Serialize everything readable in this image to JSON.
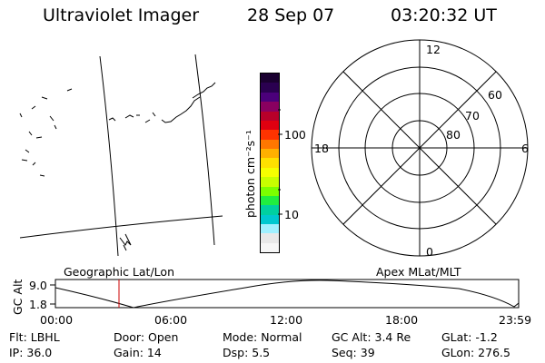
{
  "header": {
    "instrument": "Ultraviolet Imager",
    "date": "28 Sep 07",
    "time": "03:20:32 UT"
  },
  "colorbar": {
    "unit_label": "photon cm⁻²s⁻¹",
    "tick_100": "100",
    "tick_10": "10",
    "colors": [
      "#1a0030",
      "#2a0050",
      "#4b007a",
      "#8a0060",
      "#b8002a",
      "#e00010",
      "#ff3300",
      "#ff7700",
      "#ffb000",
      "#ffe000",
      "#f6ff00",
      "#c8ff00",
      "#7cff00",
      "#20ee40",
      "#00d0a0",
      "#00c8d0",
      "#a0f0ff",
      "#e8e8e8",
      "#f6f6f6"
    ]
  },
  "polar": {
    "mlt_labels": {
      "top": "12",
      "left": "18",
      "right": "6",
      "bottom": "0"
    },
    "lat_labels": [
      "60",
      "70",
      "80"
    ]
  },
  "orbit": {
    "left_label": "Geographic Lat/Lon",
    "right_label": "Apex MLat/MLT",
    "ylabel": "GC Alt",
    "y_top": "9.0",
    "y_bottom": "1.8",
    "time_ticks": [
      "00:00",
      "06:00",
      "12:00",
      "18:00",
      "23:59"
    ],
    "current_color": "#cc0000"
  },
  "footer": {
    "row1": [
      "Flt: LBHL",
      "Door: Open",
      "Mode: Normal",
      "GC Alt: 3.4 Re",
      "GLat:  -1.2"
    ],
    "row2": [
      "IP: 36.0",
      "Gain: 14",
      "Dsp:     5.5",
      "Seq: 39",
      "GLon: 276.5"
    ]
  }
}
